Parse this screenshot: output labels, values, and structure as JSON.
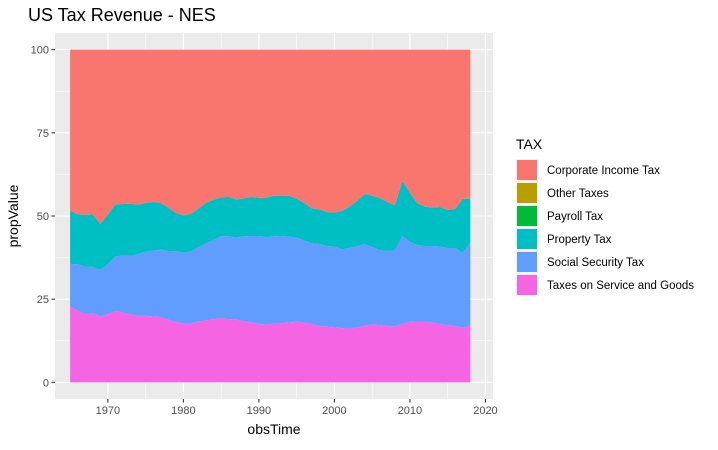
{
  "chart_data": {
    "type": "area",
    "stacked": true,
    "title": "US Tax Revenue - NES",
    "xlabel": "obsTime",
    "ylabel": "propValue",
    "xlim": [
      1963,
      2021
    ],
    "ylim": [
      -5,
      105
    ],
    "x_ticks": [
      1970,
      1980,
      1990,
      2000,
      2010,
      2020
    ],
    "y_ticks": [
      0,
      25,
      50,
      75,
      100
    ],
    "x_tick_labels": [
      "1970",
      "1980",
      "1990",
      "2000",
      "2010",
      "2020"
    ],
    "y_tick_labels": [
      "0",
      "25",
      "50",
      "75",
      "100"
    ],
    "grid": true,
    "legend_position": "right",
    "legend_title": "TAX",
    "x": [
      1965,
      1966,
      1967,
      1968,
      1969,
      1970,
      1971,
      1972,
      1973,
      1974,
      1975,
      1976,
      1977,
      1978,
      1979,
      1980,
      1981,
      1982,
      1983,
      1984,
      1985,
      1986,
      1987,
      1988,
      1989,
      1990,
      1991,
      1992,
      1993,
      1994,
      1995,
      1996,
      1997,
      1998,
      1999,
      2000,
      2001,
      2002,
      2003,
      2004,
      2005,
      2006,
      2007,
      2008,
      2009,
      2010,
      2011,
      2012,
      2013,
      2014,
      2015,
      2016,
      2017,
      2018
    ],
    "series": [
      {
        "name": "Taxes on Service and Goods",
        "color": "#F564E3",
        "values": [
          22.8,
          21.6,
          20.5,
          20.8,
          19.8,
          20.5,
          21.5,
          21.0,
          20.4,
          20.0,
          20.0,
          19.8,
          19.6,
          18.8,
          18.2,
          17.6,
          17.7,
          18.3,
          18.6,
          19.0,
          19.2,
          19.0,
          18.8,
          18.4,
          18.0,
          17.5,
          17.4,
          17.6,
          17.8,
          18.0,
          18.2,
          18.0,
          17.5,
          17.0,
          16.7,
          16.5,
          16.3,
          16.1,
          16.5,
          17.0,
          17.4,
          17.2,
          17.0,
          16.8,
          17.6,
          18.2,
          18.3,
          18.3,
          18.0,
          17.5,
          17.2,
          16.9,
          16.4,
          17.2
        ]
      },
      {
        "name": "Social Security Tax",
        "color": "#619CFF",
        "values": [
          12.8,
          13.9,
          14.2,
          13.9,
          14.0,
          15.0,
          16.4,
          17.1,
          17.6,
          18.5,
          19.3,
          19.8,
          20.3,
          20.7,
          21.2,
          21.4,
          21.6,
          22.3,
          23.2,
          23.8,
          24.7,
          24.9,
          24.7,
          25.5,
          26.0,
          26.5,
          26.2,
          26.3,
          26.2,
          25.8,
          25.3,
          24.6,
          24.3,
          24.6,
          24.3,
          24.3,
          23.7,
          24.3,
          24.5,
          24.5,
          23.3,
          22.6,
          22.5,
          22.9,
          26.4,
          24.0,
          23.0,
          22.7,
          23.0,
          23.3,
          23.2,
          23.5,
          22.5,
          25.0
        ]
      },
      {
        "name": "Property Tax",
        "color": "#00BFC4",
        "values": [
          16.0,
          15.0,
          15.6,
          15.8,
          13.8,
          14.9,
          15.6,
          15.5,
          15.7,
          14.9,
          14.7,
          14.6,
          14.0,
          13.0,
          11.5,
          11.2,
          11.3,
          11.6,
          12.2,
          12.1,
          11.7,
          11.8,
          11.5,
          11.4,
          11.7,
          11.5,
          11.9,
          12.2,
          12.0,
          12.3,
          11.7,
          11.3,
          10.5,
          10.4,
          10.2,
          10.2,
          11.5,
          12.4,
          13.5,
          15.1,
          15.4,
          15.6,
          14.7,
          13.5,
          16.6,
          14.8,
          12.5,
          11.8,
          11.5,
          11.9,
          11.4,
          11.7,
          16.3,
          13.0
        ]
      },
      {
        "name": "Payroll Tax",
        "color": "#00BA38",
        "values": [
          0,
          0,
          0,
          0,
          0,
          0,
          0,
          0,
          0,
          0,
          0,
          0,
          0,
          0,
          0,
          0,
          0,
          0,
          0,
          0,
          0,
          0,
          0,
          0,
          0,
          0,
          0,
          0,
          0,
          0,
          0,
          0,
          0,
          0,
          0,
          0,
          0,
          0,
          0,
          0,
          0,
          0,
          0,
          0,
          0,
          0,
          0,
          0,
          0,
          0,
          0,
          0,
          0,
          0
        ]
      },
      {
        "name": "Other Taxes",
        "color": "#B79F00",
        "values": [
          0,
          0,
          0,
          0,
          0,
          0,
          0,
          0,
          0,
          0,
          0,
          0,
          0,
          0,
          0,
          0,
          0,
          0,
          0,
          0,
          0,
          0,
          0,
          0,
          0,
          0,
          0,
          0,
          0,
          0,
          0,
          0,
          0,
          0,
          0,
          0,
          0,
          0,
          0,
          0,
          0,
          0,
          0,
          0,
          0,
          0,
          0,
          0,
          0,
          0,
          0,
          0,
          0,
          0
        ]
      },
      {
        "name": "Corporate Income Tax",
        "color": "#F8766D",
        "values": [
          48.4,
          49.5,
          49.7,
          49.5,
          52.4,
          49.6,
          46.5,
          46.4,
          46.3,
          46.6,
          46.0,
          45.8,
          46.1,
          47.5,
          49.1,
          49.8,
          49.4,
          47.8,
          46.0,
          45.1,
          44.4,
          44.3,
          45.0,
          44.7,
          44.3,
          44.5,
          44.5,
          43.9,
          44.0,
          43.9,
          44.8,
          46.1,
          47.7,
          48.0,
          48.8,
          49.0,
          48.5,
          47.2,
          45.5,
          43.4,
          43.9,
          44.6,
          45.8,
          46.8,
          39.4,
          43.0,
          46.2,
          47.2,
          47.5,
          47.3,
          48.2,
          47.9,
          44.8,
          44.8
        ]
      }
    ],
    "legend": [
      {
        "label": "Corporate Income Tax",
        "color": "#F8766D"
      },
      {
        "label": "Other Taxes",
        "color": "#B79F00"
      },
      {
        "label": "Payroll Tax",
        "color": "#00BA38"
      },
      {
        "label": "Property Tax",
        "color": "#00BFC4"
      },
      {
        "label": "Social Security Tax",
        "color": "#619CFF"
      },
      {
        "label": "Taxes on Service and Goods",
        "color": "#F564E3"
      }
    ]
  }
}
